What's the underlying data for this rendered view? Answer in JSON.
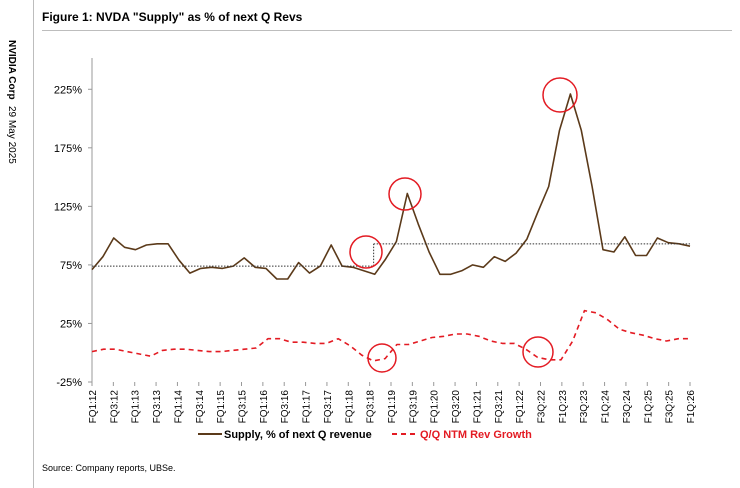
{
  "sidebar": {
    "company": "NVIDIA Corp",
    "date": "29 May 2025"
  },
  "title": "Figure 1: NVDA \"Supply\" as % of next Q Revs",
  "source": "Source: Company reports, UBSe.",
  "colors": {
    "supply": "#5b3a1a",
    "growth": "#e31b23",
    "circle": "#e31b23",
    "axis": "#999999",
    "threshold": "#333333"
  },
  "chart_data": {
    "type": "line",
    "title": "Figure 1: NVDA \"Supply\" as % of next Q Revs",
    "xlabel": "",
    "ylabel": "",
    "ylim": [
      -25,
      250
    ],
    "yticks": [
      -25,
      25,
      75,
      125,
      175,
      225
    ],
    "ytick_labels": [
      "-25%",
      "25%",
      "75%",
      "125%",
      "175%",
      "225%"
    ],
    "tick_labels": [
      "FQ1:12",
      "FQ3:12",
      "FQ1:13",
      "FQ3:13",
      "FQ1:14",
      "FQ3:14",
      "FQ1:15",
      "FQ3:15",
      "FQ1:16",
      "FQ3:16",
      "FQ1:17",
      "FQ3:17",
      "FQ1:18",
      "FQ3:18",
      "FQ1:19",
      "FQ3:19",
      "FQ1:20",
      "FQ3:20",
      "FQ1:21",
      "FQ3:21",
      "FQ1:22",
      "F3Q:22",
      "F1Q:23",
      "F3Q:23",
      "F1Q:24",
      "F3Q:24",
      "F1Q:25",
      "F3Q:25",
      "F1Q:26"
    ],
    "series": [
      {
        "name": "Supply, % of next Q revenue",
        "style": "solid",
        "values": [
          71,
          82,
          98,
          90,
          88,
          92,
          93,
          93,
          79,
          68,
          72,
          73,
          72,
          74,
          81,
          73,
          72,
          63,
          63,
          77,
          68,
          74,
          92,
          74,
          73,
          70,
          67,
          80,
          95,
          136,
          110,
          86,
          67,
          67,
          70,
          75,
          73,
          82,
          78,
          85,
          97,
          120,
          142,
          190,
          221,
          190,
          142,
          88,
          86,
          99,
          83,
          83,
          98,
          94,
          93,
          91
        ]
      },
      {
        "name": "Q/Q NTM Rev Growth",
        "style": "dashed",
        "values": [
          1,
          3,
          3,
          1,
          -1,
          -3,
          2,
          3,
          3,
          2,
          1,
          1,
          2,
          3,
          4,
          12,
          12,
          9,
          9,
          8,
          8,
          12,
          6,
          -2,
          -7,
          -5,
          7,
          7,
          10,
          13,
          14,
          16,
          16,
          14,
          10,
          8,
          8,
          3,
          -4,
          -6,
          -6,
          10,
          36,
          34,
          28,
          20,
          17,
          15,
          12,
          10,
          12,
          12
        ]
      }
    ],
    "threshold": {
      "value": 93,
      "label": ""
    },
    "annotations": [
      "circle-FQ3:18",
      "circle-FQ3:19",
      "circle-FQ3:22",
      "circle-FQ1:23"
    ],
    "legend": "bottom"
  }
}
